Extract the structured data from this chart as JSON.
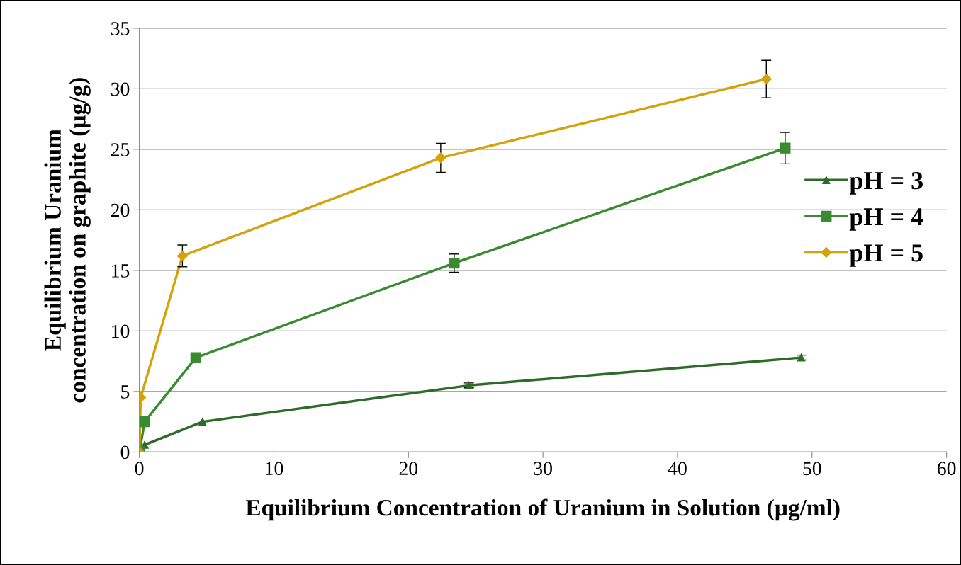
{
  "chart_data": {
    "type": "line",
    "xlabel": "Equilibrium Concentration of Uranium in Solution (µg/ml)",
    "ylabel": "Equilibrium Uranium\nconcentration on graphite (µg/g)",
    "xlim": [
      0,
      60
    ],
    "xticks": [
      0,
      10,
      20,
      30,
      40,
      50,
      60
    ],
    "ylim": [
      0,
      35
    ],
    "yticks": [
      0,
      5,
      10,
      15,
      20,
      25,
      30,
      35
    ],
    "grid": true,
    "legend": "right",
    "series": [
      {
        "name": "pH = 3",
        "color": "#2e6b2a",
        "marker": "triangle",
        "x": [
          0.4,
          4.7,
          24.5,
          49.2
        ],
        "values": [
          0.6,
          2.5,
          5.5,
          7.8
        ],
        "errors": [
          null,
          null,
          0.2,
          0.2
        ]
      },
      {
        "name": "pH = 4",
        "color": "#3a8a31",
        "marker": "square",
        "x": [
          0,
          0.4,
          4.2,
          23.4,
          48.0
        ],
        "values": [
          0,
          2.5,
          7.8,
          15.6,
          25.1
        ],
        "errors": [
          null,
          null,
          null,
          0.75,
          1.3
        ]
      },
      {
        "name": "pH = 5",
        "color": "#d4a20a",
        "marker": "diamond",
        "x": [
          0,
          0.1,
          3.2,
          22.4,
          46.6
        ],
        "values": [
          0,
          4.5,
          16.2,
          24.3,
          30.8
        ],
        "errors": [
          null,
          null,
          0.9,
          1.2,
          1.55
        ]
      }
    ]
  }
}
